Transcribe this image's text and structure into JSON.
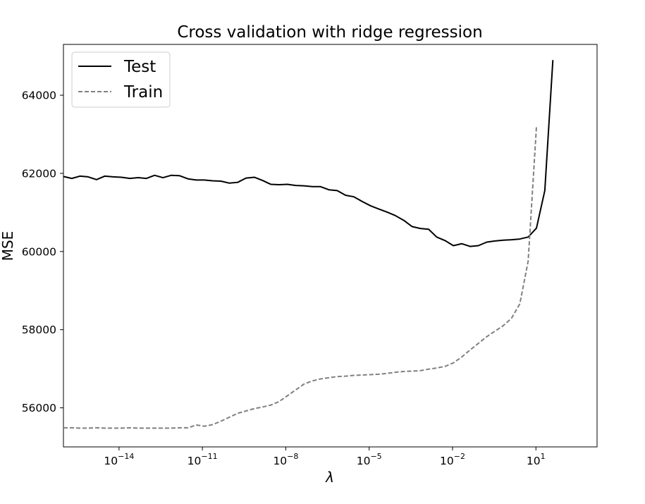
{
  "chart_data": {
    "type": "line",
    "title": "Cross validation with ridge regression",
    "xlabel": "λ",
    "ylabel": "MSE",
    "xscale": "log",
    "xlim_log10": [
      -16,
      3.2
    ],
    "ylim": [
      55000,
      65300
    ],
    "x_ticks": [
      {
        "base": "10",
        "exp": "−14",
        "value_log10": -14
      },
      {
        "base": "10",
        "exp": "−11",
        "value_log10": -11
      },
      {
        "base": "10",
        "exp": "−8",
        "value_log10": -8
      },
      {
        "base": "10",
        "exp": "−5",
        "value_log10": -5
      },
      {
        "base": "10",
        "exp": "−2",
        "value_log10": -2
      },
      {
        "base": "10",
        "exp": "1",
        "value_log10": 1
      }
    ],
    "y_ticks": [
      56000,
      58000,
      60000,
      62000,
      64000
    ],
    "grid": false,
    "legend": {
      "position": "top-left"
    },
    "series": [
      {
        "name": "Test",
        "color": "#000000",
        "dash": "solid",
        "log10_x": [
          -16.0,
          -15.7,
          -15.4,
          -15.11,
          -14.81,
          -14.51,
          -14.21,
          -13.91,
          -13.61,
          -13.31,
          -13.02,
          -12.72,
          -12.42,
          -12.12,
          -11.82,
          -11.52,
          -11.22,
          -10.93,
          -10.63,
          -10.33,
          -10.03,
          -9.73,
          -9.43,
          -9.13,
          -8.84,
          -8.54,
          -8.24,
          -7.94,
          -7.64,
          -7.34,
          -7.04,
          -6.75,
          -6.45,
          -6.15,
          -5.85,
          -5.55,
          -5.25,
          -4.95,
          -4.66,
          -4.36,
          -4.06,
          -3.76,
          -3.46,
          -3.16,
          -2.86,
          -2.57,
          -2.27,
          -1.97,
          -1.67,
          -1.37,
          -1.07,
          -0.77,
          -0.48,
          -0.18,
          0.12,
          0.42,
          0.72,
          1.02,
          1.32,
          1.61,
          1.91,
          2.21
        ],
        "values": [
          61920,
          61870,
          61930,
          61910,
          61840,
          61930,
          61910,
          61900,
          61870,
          61890,
          61870,
          61950,
          61890,
          61950,
          61940,
          61860,
          61830,
          61830,
          61810,
          61800,
          61750,
          61770,
          61880,
          61900,
          61820,
          61720,
          61710,
          61720,
          61690,
          61680,
          61660,
          61660,
          61580,
          61560,
          61440,
          61400,
          61280,
          61170,
          61090,
          61010,
          60920,
          60800,
          60640,
          60590,
          60570,
          60370,
          60280,
          60150,
          60200,
          60130,
          60150,
          60240,
          60270,
          60290,
          60300,
          60320,
          60370,
          60600,
          61560,
          64900,
          null,
          null
        ]
      },
      {
        "name": "Train",
        "color": "#808080",
        "dash": "dashed",
        "log10_x": [
          -16.0,
          -15.7,
          -15.4,
          -15.11,
          -14.81,
          -14.51,
          -14.21,
          -13.91,
          -13.61,
          -13.31,
          -13.02,
          -12.72,
          -12.42,
          -12.12,
          -11.82,
          -11.52,
          -11.22,
          -10.93,
          -10.63,
          -10.33,
          -10.03,
          -9.73,
          -9.43,
          -9.13,
          -8.84,
          -8.54,
          -8.24,
          -7.94,
          -7.64,
          -7.34,
          -7.04,
          -6.75,
          -6.45,
          -6.15,
          -5.85,
          -5.55,
          -5.25,
          -4.95,
          -4.66,
          -4.36,
          -4.06,
          -3.76,
          -3.46,
          -3.16,
          -2.86,
          -2.57,
          -2.27,
          -1.97,
          -1.67,
          -1.37,
          -1.07,
          -0.77,
          -0.48,
          -0.18,
          0.12,
          0.42,
          0.72,
          1.02,
          1.32,
          1.61,
          1.91,
          2.21
        ],
        "values": [
          55490,
          55490,
          55480,
          55480,
          55490,
          55480,
          55480,
          55480,
          55490,
          55480,
          55480,
          55480,
          55480,
          55480,
          55490,
          55490,
          55560,
          55530,
          55570,
          55660,
          55760,
          55860,
          55920,
          55980,
          56020,
          56070,
          56160,
          56310,
          56460,
          56610,
          56690,
          56740,
          56770,
          56800,
          56810,
          56830,
          56840,
          56850,
          56860,
          56880,
          56910,
          56930,
          56940,
          56950,
          56990,
          57020,
          57060,
          57150,
          57300,
          57480,
          57650,
          57820,
          57960,
          58100,
          58290,
          58660,
          59750,
          63200,
          null,
          null,
          null,
          null
        ]
      }
    ]
  }
}
